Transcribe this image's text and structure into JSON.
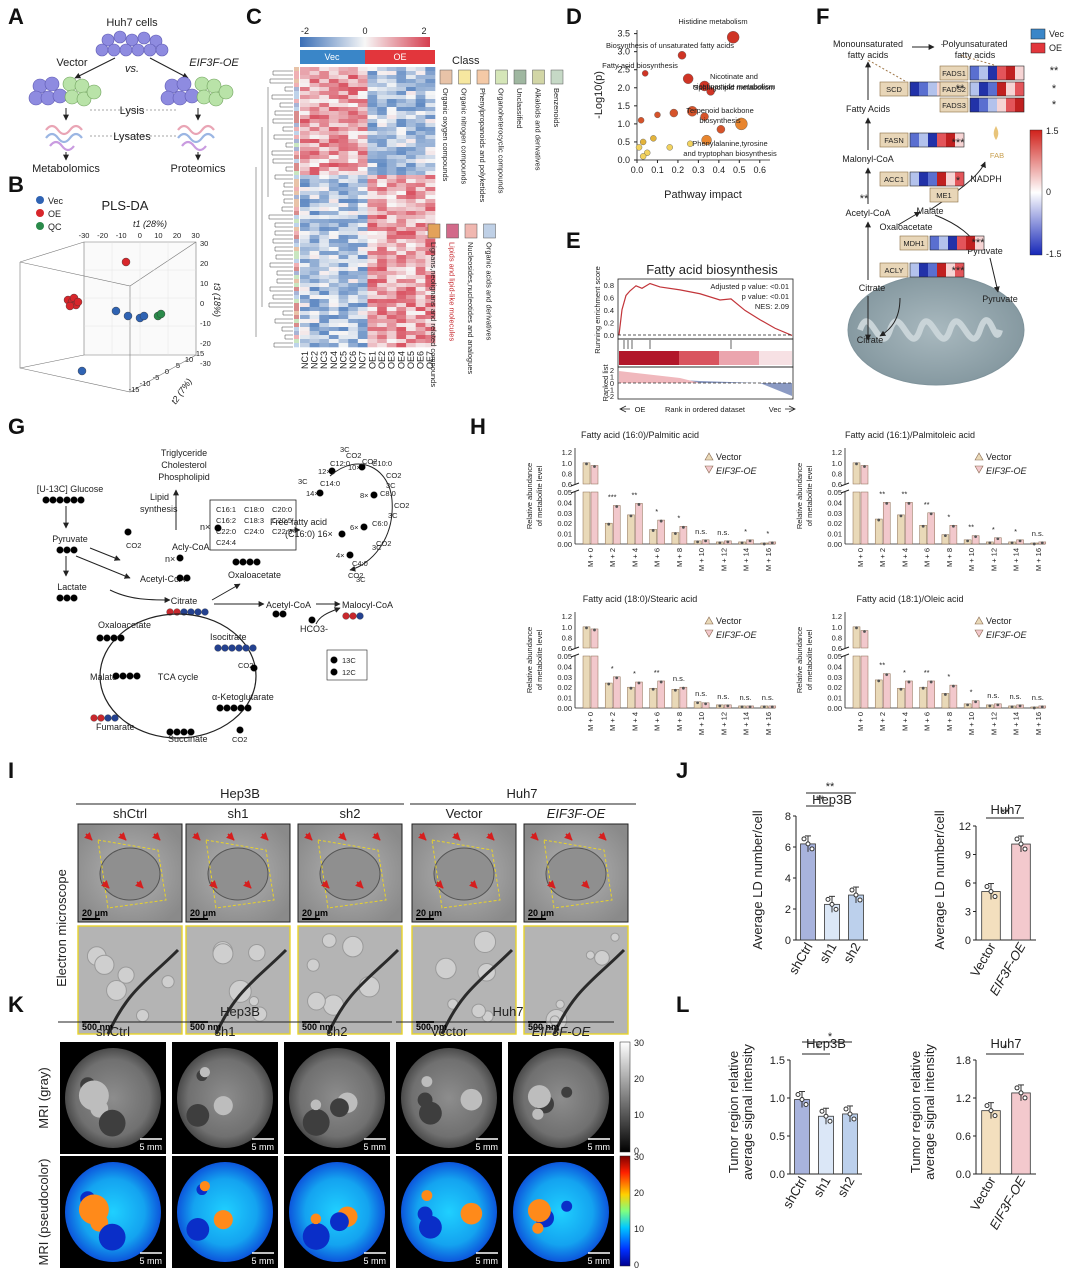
{
  "panels": {
    "A": {
      "letter": "A",
      "cells": "Huh7 cells",
      "vector": "Vector",
      "vs": "vs.",
      "oe": "EIF3F-OE",
      "lysis": "Lysis",
      "lysates": "Lysates",
      "metabolomics": "Metabolomics",
      "proteomics": "Proteomics"
    },
    "B": {
      "letter": "B",
      "title": "PLS-DA",
      "legend": [
        "Vec",
        "OE",
        "QC"
      ],
      "t1": "t1 (28%)",
      "t2": "t2 (7%)",
      "t3": "t3 (18%)",
      "ticks_top": [
        "-30",
        "-20",
        "-10",
        "0",
        "10",
        "20",
        "30"
      ],
      "ticks_right": [
        "30",
        "20",
        "10",
        "0",
        "-10",
        "-20",
        "-30"
      ],
      "ticks_bottom": [
        "-15",
        "-10",
        "-5",
        "0",
        "5",
        "10",
        "15"
      ]
    },
    "C": {
      "letter": "C",
      "scale": [
        "-2",
        "0",
        "2"
      ],
      "groups": [
        "Vec",
        "OE"
      ],
      "class_title": "Class",
      "classes": [
        "Organic oxygen compounds",
        "Organic nitrogen compounds",
        "Phenylpropanoids and polyketides",
        "Organoheterocyclic compounds",
        "Unclassified",
        "Alkaloids and derivatives",
        "Benzenoids",
        "Lignans,neolignans and related compounds",
        "Lipids and lipid-like molecules",
        "Nucleosides,nucleotides and analogues",
        "Organic acids and derivatives"
      ],
      "samples": [
        "NC1",
        "NC2",
        "NC3",
        "NC4",
        "NC5",
        "NC6",
        "NC7",
        "OE1",
        "OE2",
        "OE3",
        "OE4",
        "OE5",
        "OE6",
        "OE7"
      ]
    },
    "D": {
      "letter": "D",
      "ylabel": "-Log10(p)",
      "xlabel": "Pathway impact",
      "xticks": [
        "0.0",
        "0.1",
        "0.2",
        "0.3",
        "0.4",
        "0.5",
        "0.6"
      ],
      "yticks": [
        "0.0",
        "0.5",
        "1.0",
        "1.5",
        "2.0",
        "2.5",
        "3.0",
        "3.5"
      ],
      "labels": [
        "Histidine metabolism",
        "Biosynthesis of unsaturated fatty acids",
        "Fatty acid biosynthesis",
        "Nicotinate and nicotinamide metabolism",
        "Sphingolipid metabolism",
        "Terpenoid backbone biosynthesis",
        "Phenylalanine,tyrosine and tryptophan biosynthesis"
      ]
    },
    "E": {
      "letter": "E",
      "title": "Fatty acid biosynthesis",
      "ylabel1": "Running enrichment score",
      "ylabel2": "Ranked list",
      "stats": [
        "Adjusted p value: <0.01",
        "p value: <0.01",
        "NES: 2.09"
      ],
      "yticks": [
        "0.8",
        "0.6",
        "0.4",
        "0.2",
        "0.0"
      ],
      "yticks2": [
        "2",
        "1",
        "0",
        "-1",
        "-2"
      ],
      "xleft": "OE",
      "xmid": "Rank in ordered dataset",
      "xright": "Vec"
    },
    "F": {
      "letter": "F",
      "legend": [
        "Vec",
        "OE"
      ],
      "mono": "Monounsaturated fatty acids",
      "poly": "Polyunsaturated fatty acids",
      "genes": [
        "SCD",
        "FADS1",
        "FADS2",
        "FADS3",
        "FASN",
        "ACC1",
        "ME1",
        "MDH1",
        "ACLY"
      ],
      "metabolites": [
        "Fatty Acids",
        "Malonyl-CoA",
        "Acetyl-CoA",
        "Malate",
        "Oxaloacetate",
        "NADPH",
        "Pyruvate",
        "Citrate",
        "Pyruvate",
        "Citrate"
      ],
      "scale": [
        "1.5",
        "0",
        "-1.5"
      ],
      "fab": "FAB",
      "stars": [
        "**",
        "*",
        "*",
        "**",
        "***",
        "*",
        "**",
        "***",
        "***"
      ]
    },
    "G": {
      "letter": "G",
      "glucose": "[U-13C] Glucose",
      "pyruvate": "Pyruvate",
      "lactate": "Lactate",
      "acetylcoa": "Acetyl-CoA",
      "oxaloacetate": "Oxaloacetate",
      "citrate": "Citrate",
      "isocitrate": "Isocitrate",
      "akg": "α-Ketoglutarate",
      "succinate": "Succinate",
      "fumarate": "Fumarate",
      "malate": "Malate",
      "tca": "TCA cycle",
      "co2": "CO2",
      "hco3": "HCO3-",
      "malonyl": "Malocyl-CoA",
      "acetylcoa2": "Acetyl-CoA",
      "oxaloacetate2": "Oxaloacetate",
      "citrate2": "Citrate",
      "tri": "Triglyceride",
      "chol": "Cholesterol",
      "phos": "Phospholipid",
      "lipid": "Lipid synthesis",
      "acly": "Acly-CoA",
      "ffa": "Free fatty acid (C16:0) 16×",
      "box": [
        "C16:1",
        "C18:0",
        "C20:0",
        "C16:2",
        "C18:3",
        "C20:5",
        "C22:0",
        "C24:0",
        "C22:5",
        "C24:4"
      ],
      "nx": "n×",
      "nx2": "n×",
      "chain": [
        "C12:0",
        "12×",
        "C14:0",
        "14×",
        "C10:0",
        "10×",
        "C8:0",
        "8×",
        "C6:0",
        "6×",
        "C4:0",
        "4×",
        "3C",
        "3C",
        "3C",
        "3C",
        "3C",
        "3C"
      ],
      "legend": [
        "13C",
        "12C"
      ]
    },
    "H": {
      "letter": "H",
      "ylabel": "Relative abundance of metabolite level",
      "legend": [
        "Vector",
        "EIF3F-OE"
      ],
      "xcats": [
        "M + 0",
        "M + 2",
        "M + 4",
        "M + 6",
        "M + 8",
        "M + 10",
        "M + 12",
        "M + 14",
        "M + 16"
      ],
      "yticks_top": [
        "0.6",
        "0.8",
        "1.0",
        "1.2"
      ],
      "yticks_bot": [
        "0.00",
        "0.01",
        "0.02",
        "0.03",
        "0.04",
        "0.05"
      ],
      "charts": [
        {
          "title": "Fatty acid (16:0)/Palmitic acid",
          "vec": [
            1.0,
            0.02,
            0.028,
            0.014,
            0.011,
            0.003,
            0.002,
            0.002,
            0.001
          ],
          "oe": [
            0.95,
            0.037,
            0.039,
            0.023,
            0.017,
            0.004,
            0.003,
            0.004,
            0.002
          ],
          "sig": [
            "",
            "***",
            "**",
            "*",
            "*",
            "n.s.",
            "n.s.",
            "*",
            "*"
          ]
        },
        {
          "title": "Fatty acid (16:1)/Palmitoleic acid",
          "vec": [
            1.0,
            0.024,
            0.028,
            0.018,
            0.009,
            0.004,
            0.002,
            0.002,
            0.001
          ],
          "oe": [
            0.95,
            0.04,
            0.04,
            0.03,
            0.018,
            0.008,
            0.006,
            0.004,
            0.002
          ],
          "sig": [
            "",
            "**",
            "**",
            "**",
            "*",
            "**",
            "*",
            "*",
            "n.s."
          ]
        },
        {
          "title": "Fatty acid (18:0)/Stearic acid",
          "vec": [
            1.0,
            0.024,
            0.02,
            0.019,
            0.018,
            0.006,
            0.003,
            0.002,
            0.002
          ],
          "oe": [
            0.96,
            0.03,
            0.025,
            0.026,
            0.02,
            0.005,
            0.003,
            0.002,
            0.002
          ],
          "sig": [
            "",
            "*",
            "*",
            "**",
            "n.s.",
            "n.s.",
            "n.s.",
            "n.s.",
            "n.s."
          ]
        },
        {
          "title": "Fatty acid (18:1)/Oleic acid",
          "vec": [
            1.0,
            0.027,
            0.019,
            0.02,
            0.014,
            0.004,
            0.003,
            0.002,
            0.001
          ],
          "oe": [
            0.93,
            0.033,
            0.026,
            0.026,
            0.022,
            0.007,
            0.004,
            0.003,
            0.002
          ],
          "sig": [
            "",
            "**",
            "*",
            "**",
            "*",
            "*",
            "n.s.",
            "n.s.",
            "n.s."
          ]
        }
      ]
    },
    "I": {
      "letter": "I",
      "hep3b": "Hep3B",
      "huh7": "Huh7",
      "cols": [
        "shCtrl",
        "sh1",
        "sh2",
        "Vector",
        "EIF3F-OE"
      ],
      "row": "Electron microscope",
      "scale1": "20 μm",
      "scale2": "500 nm"
    },
    "J": {
      "letter": "J",
      "ylabel": "Average LD number/cell",
      "left": {
        "title": "Hep3B",
        "cats": [
          "shCtrl",
          "sh1",
          "sh2"
        ],
        "values": [
          6.2,
          2.3,
          2.9
        ],
        "yticks": [
          "0",
          "2",
          "4",
          "6",
          "8"
        ],
        "sig": [
          "**",
          "**"
        ]
      },
      "right": {
        "title": "Huh7",
        "cats": [
          "Vector",
          "EIF3F-OE"
        ],
        "values": [
          5.1,
          10.1
        ],
        "yticks": [
          "0",
          "3",
          "6",
          "9",
          "12"
        ],
        "sig": [
          "**"
        ]
      }
    },
    "K": {
      "letter": "K",
      "hep3b": "Hep3B",
      "huh7": "Huh7",
      "cols": [
        "shCtrl",
        "sh1",
        "sh2",
        "Vector",
        "EIF3F-OE"
      ],
      "row1": "MRI (gray)",
      "row2": "MRI (pseudocolor)",
      "scale": "5 mm",
      "cbar": [
        "30",
        "20",
        "10",
        "0"
      ]
    },
    "L": {
      "letter": "L",
      "ylabel": "Tumor region relative average signal intensity",
      "left": {
        "title": "Hep3B",
        "cats": [
          "shCtrl",
          "sh1",
          "sh2"
        ],
        "values": [
          0.98,
          0.76,
          0.79
        ],
        "yticks": [
          "0.0",
          "0.5",
          "1.0",
          "1.5"
        ],
        "sig": [
          "*",
          "*"
        ]
      },
      "right": {
        "title": "Huh7",
        "cats": [
          "Vector",
          "EIF3F-OE"
        ],
        "values": [
          1.0,
          1.28
        ],
        "yticks": [
          "0.0",
          "0.6",
          "1.2",
          "1.8"
        ],
        "sig": [
          "*"
        ]
      }
    }
  },
  "colors": {
    "vec": "#2f63b3",
    "oe": "#d8262b",
    "qc": "#2a8a4a",
    "vecbar": "#e9d9b8",
    "oebar": "#f2c8cc",
    "heat_hi": "#d53e4f",
    "heat_lo": "#3b6fb6"
  }
}
